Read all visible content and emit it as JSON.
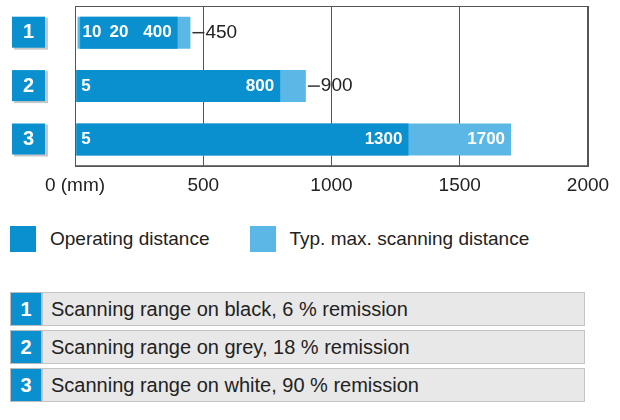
{
  "chart_data": {
    "type": "bar",
    "orientation": "horizontal",
    "categories": [
      "1",
      "2",
      "3"
    ],
    "series": [
      {
        "name": "Operating distance",
        "color": "#0a8fcf",
        "values": [
          [
            20,
            400
          ],
          [
            5,
            800
          ],
          [
            5,
            1300
          ]
        ]
      },
      {
        "name": "Typ. max. scanning distance",
        "color": "#5bb8e6",
        "values": [
          [
            10,
            450
          ],
          [
            5,
            900
          ],
          [
            5,
            1700
          ]
        ]
      }
    ],
    "xlim": [
      0,
      2000
    ],
    "xticks": [
      {
        "value": 0,
        "label": "0 (mm)"
      },
      500,
      1000,
      1500,
      2000
    ],
    "grid": true,
    "data_labels": true,
    "row_descriptions": [
      {
        "key": "1",
        "text": "Scanning range on black, 6 % remission"
      },
      {
        "key": "2",
        "text": "Scanning range on grey, 18 % remission"
      },
      {
        "key": "3",
        "text": "Scanning range on white, 90 % remission"
      }
    ]
  }
}
